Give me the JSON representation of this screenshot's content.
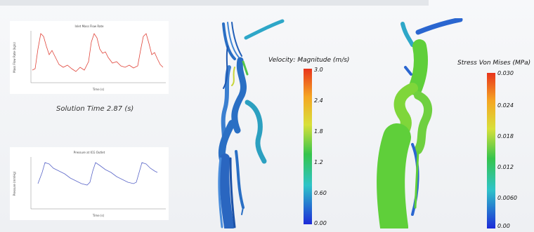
{
  "top_chart": {
    "title": "Inlet Mass Flow Rate",
    "xlabel": "Time (s)",
    "ylabel": "Mass Flow Rate (kg/s)",
    "color": "#e0443a"
  },
  "bottom_chart": {
    "title": "Pressure at ICG Outlet",
    "xlabel": "Time (s)",
    "ylabel": "Pressure (mmHg)",
    "color": "#5a66c8"
  },
  "solution_time": "Solution Time 2.87 (s)",
  "velocity_legend": {
    "title": "Velocity: Magnitude (m/s)",
    "ticks": [
      "3.0",
      "2.4",
      "1.8",
      "1.2",
      "0.60",
      "0.00"
    ]
  },
  "stress_legend": {
    "title": "Stress Von Mises (MPa)",
    "ticks": [
      "0.030",
      "0.024",
      "0.018",
      "0.012",
      "0.0060",
      "0.00"
    ]
  },
  "colors": {
    "scale_top": "#e8341c",
    "scale_mid": "#35c44c",
    "scale_bottom": "#1d2bd8",
    "streamline": "#2a6fc4",
    "vessel": "#5fcf3a"
  }
}
